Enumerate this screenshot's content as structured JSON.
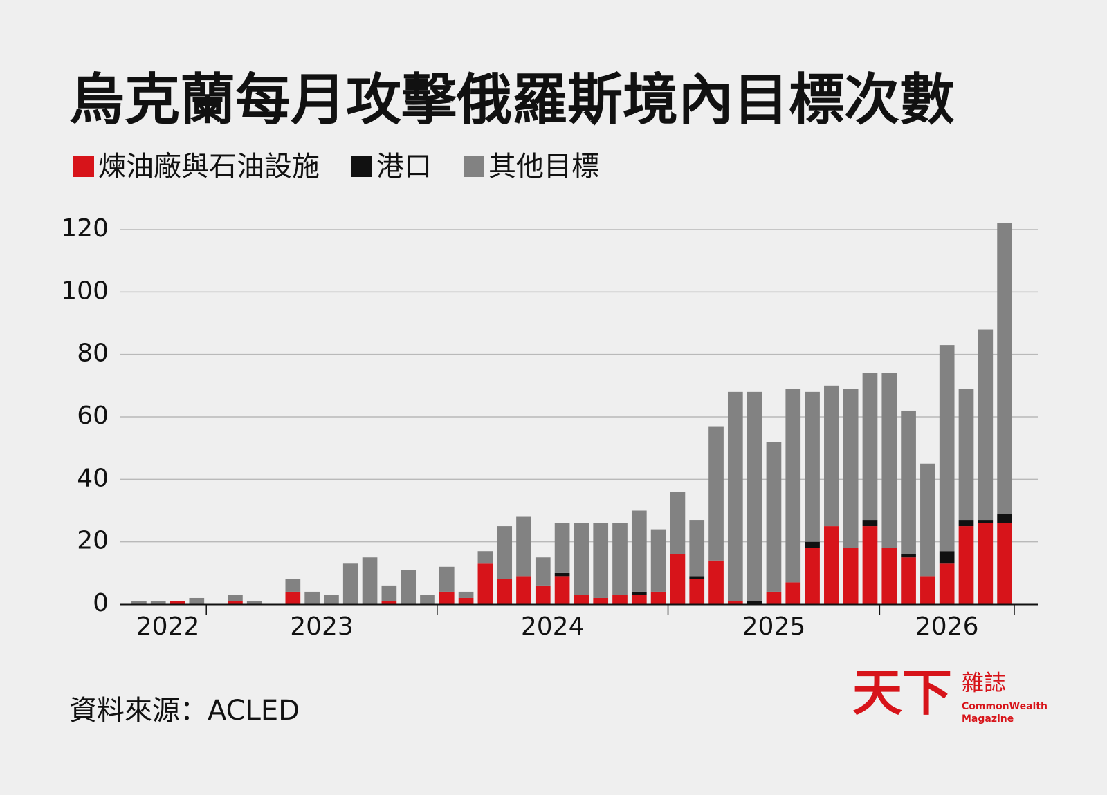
{
  "chart_data": {
    "type": "stacked_bar",
    "title": "烏克蘭每月攻擊俄羅斯境內目標次數",
    "categories": [
      null,
      null,
      null,
      null,
      null,
      null,
      null,
      null,
      null,
      null,
      null,
      null,
      null,
      null,
      null,
      null,
      null,
      null,
      null,
      null,
      null,
      null,
      null,
      null,
      null,
      null,
      null,
      null,
      null,
      null,
      null,
      null,
      null,
      null,
      null,
      null,
      null,
      null,
      null,
      null,
      null,
      null,
      null,
      null,
      null,
      null
    ],
    "x_groups": [
      {
        "label": "2022",
        "count": 4
      },
      {
        "label": "2023",
        "count": 12
      },
      {
        "label": "2024",
        "count": 12
      },
      {
        "label": "2025",
        "count": 11
      },
      {
        "label": "2026",
        "count": 7
      }
    ],
    "series": [
      {
        "name": "煉油廠與石油設施",
        "color": "#d7141a",
        "values": [
          0,
          0,
          1,
          0,
          0,
          1,
          0,
          0,
          4,
          0,
          0,
          0,
          0,
          1,
          0,
          0,
          4,
          2,
          13,
          8,
          9,
          6,
          9,
          3,
          2,
          3,
          3,
          4,
          16,
          8,
          14,
          1,
          0,
          4,
          7,
          18,
          25,
          18,
          25,
          18,
          15,
          9,
          13,
          25,
          26,
          26
        ]
      },
      {
        "name": "港口",
        "color": "#111111",
        "values": [
          0,
          0,
          0,
          0,
          0,
          0,
          0,
          0,
          0,
          0,
          0,
          0,
          0,
          0,
          0,
          0,
          0,
          0,
          0,
          0,
          0,
          0,
          1,
          0,
          0,
          0,
          1,
          0,
          0,
          1,
          0,
          0,
          1,
          0,
          0,
          2,
          0,
          0,
          2,
          0,
          1,
          0,
          4,
          2,
          1,
          3
        ]
      },
      {
        "name": "其他目標",
        "color": "#828282",
        "values": [
          1,
          1,
          0,
          2,
          0,
          2,
          1,
          0,
          4,
          4,
          3,
          13,
          15,
          5,
          11,
          3,
          8,
          2,
          4,
          17,
          19,
          9,
          16,
          23,
          24,
          23,
          26,
          20,
          20,
          18,
          43,
          67,
          67,
          48,
          62,
          48,
          45,
          51,
          47,
          56,
          46,
          36,
          66,
          42,
          61,
          93
        ]
      }
    ],
    "ylim": [
      0,
      120
    ],
    "yticks": [
      0,
      20,
      40,
      60,
      80,
      100,
      120
    ],
    "grid": true,
    "source": "資料來源：ACLED",
    "logo": {
      "main": "天下",
      "sub": "雜誌",
      "en1": "CommonWealth",
      "en2": "Magazine"
    }
  }
}
